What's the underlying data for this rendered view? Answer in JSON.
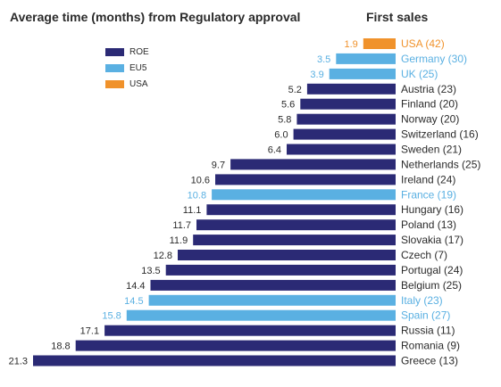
{
  "colors": {
    "ROE": "#2b2a75",
    "EU5": "#5ab0e2",
    "USA": "#f0922b",
    "text_default": "#2b2b2b"
  },
  "chart_data": {
    "type": "bar",
    "orientation": "horizontal",
    "title": "Average time (months) from Regulatory approval",
    "subtitle": "First sales",
    "legend": {
      "placement": "top-left",
      "entries": [
        {
          "label": "ROE",
          "group": "ROE"
        },
        {
          "label": "EU5",
          "group": "EU5"
        },
        {
          "label": "USA",
          "group": "USA"
        }
      ]
    },
    "bars": [
      {
        "label": "USA (42)",
        "value": 1.9,
        "group": "USA"
      },
      {
        "label": "Germany (30)",
        "value": 3.5,
        "group": "EU5"
      },
      {
        "label": "UK (25)",
        "value": 3.9,
        "group": "EU5"
      },
      {
        "label": "Austria (23)",
        "value": 5.2,
        "group": "ROE"
      },
      {
        "label": "Finland (20)",
        "value": 5.6,
        "group": "ROE"
      },
      {
        "label": "Norway (20)",
        "value": 5.8,
        "group": "ROE"
      },
      {
        "label": "Switzerland (16)",
        "value": 6.0,
        "group": "ROE"
      },
      {
        "label": "Sweden (21)",
        "value": 6.4,
        "group": "ROE"
      },
      {
        "label": "Netherlands (25)",
        "value": 9.7,
        "group": "ROE"
      },
      {
        "label": "Ireland (24)",
        "value": 10.6,
        "group": "ROE"
      },
      {
        "label": "France (19)",
        "value": 10.8,
        "group": "EU5"
      },
      {
        "label": "Hungary (16)",
        "value": 11.1,
        "group": "ROE"
      },
      {
        "label": "Poland (13)",
        "value": 11.7,
        "group": "ROE"
      },
      {
        "label": "Slovakia (17)",
        "value": 11.9,
        "group": "ROE"
      },
      {
        "label": "Czech (7)",
        "value": 12.8,
        "group": "ROE"
      },
      {
        "label": "Portugal (24)",
        "value": 13.5,
        "group": "ROE"
      },
      {
        "label": "Belgium (25)",
        "value": 14.4,
        "group": "ROE"
      },
      {
        "label": "Italy (23)",
        "value": 14.5,
        "group": "EU5"
      },
      {
        "label": "Spain (27)",
        "value": 15.8,
        "group": "EU5"
      },
      {
        "label": "Russia (11)",
        "value": 17.1,
        "group": "ROE"
      },
      {
        "label": "Romania (9)",
        "value": 18.8,
        "group": "ROE"
      },
      {
        "label": "Greece (13)",
        "value": 21.3,
        "group": "ROE"
      }
    ],
    "direction": "bars extend leftward from a common baseline",
    "xlim": [
      0,
      21.3
    ],
    "grid": false
  }
}
